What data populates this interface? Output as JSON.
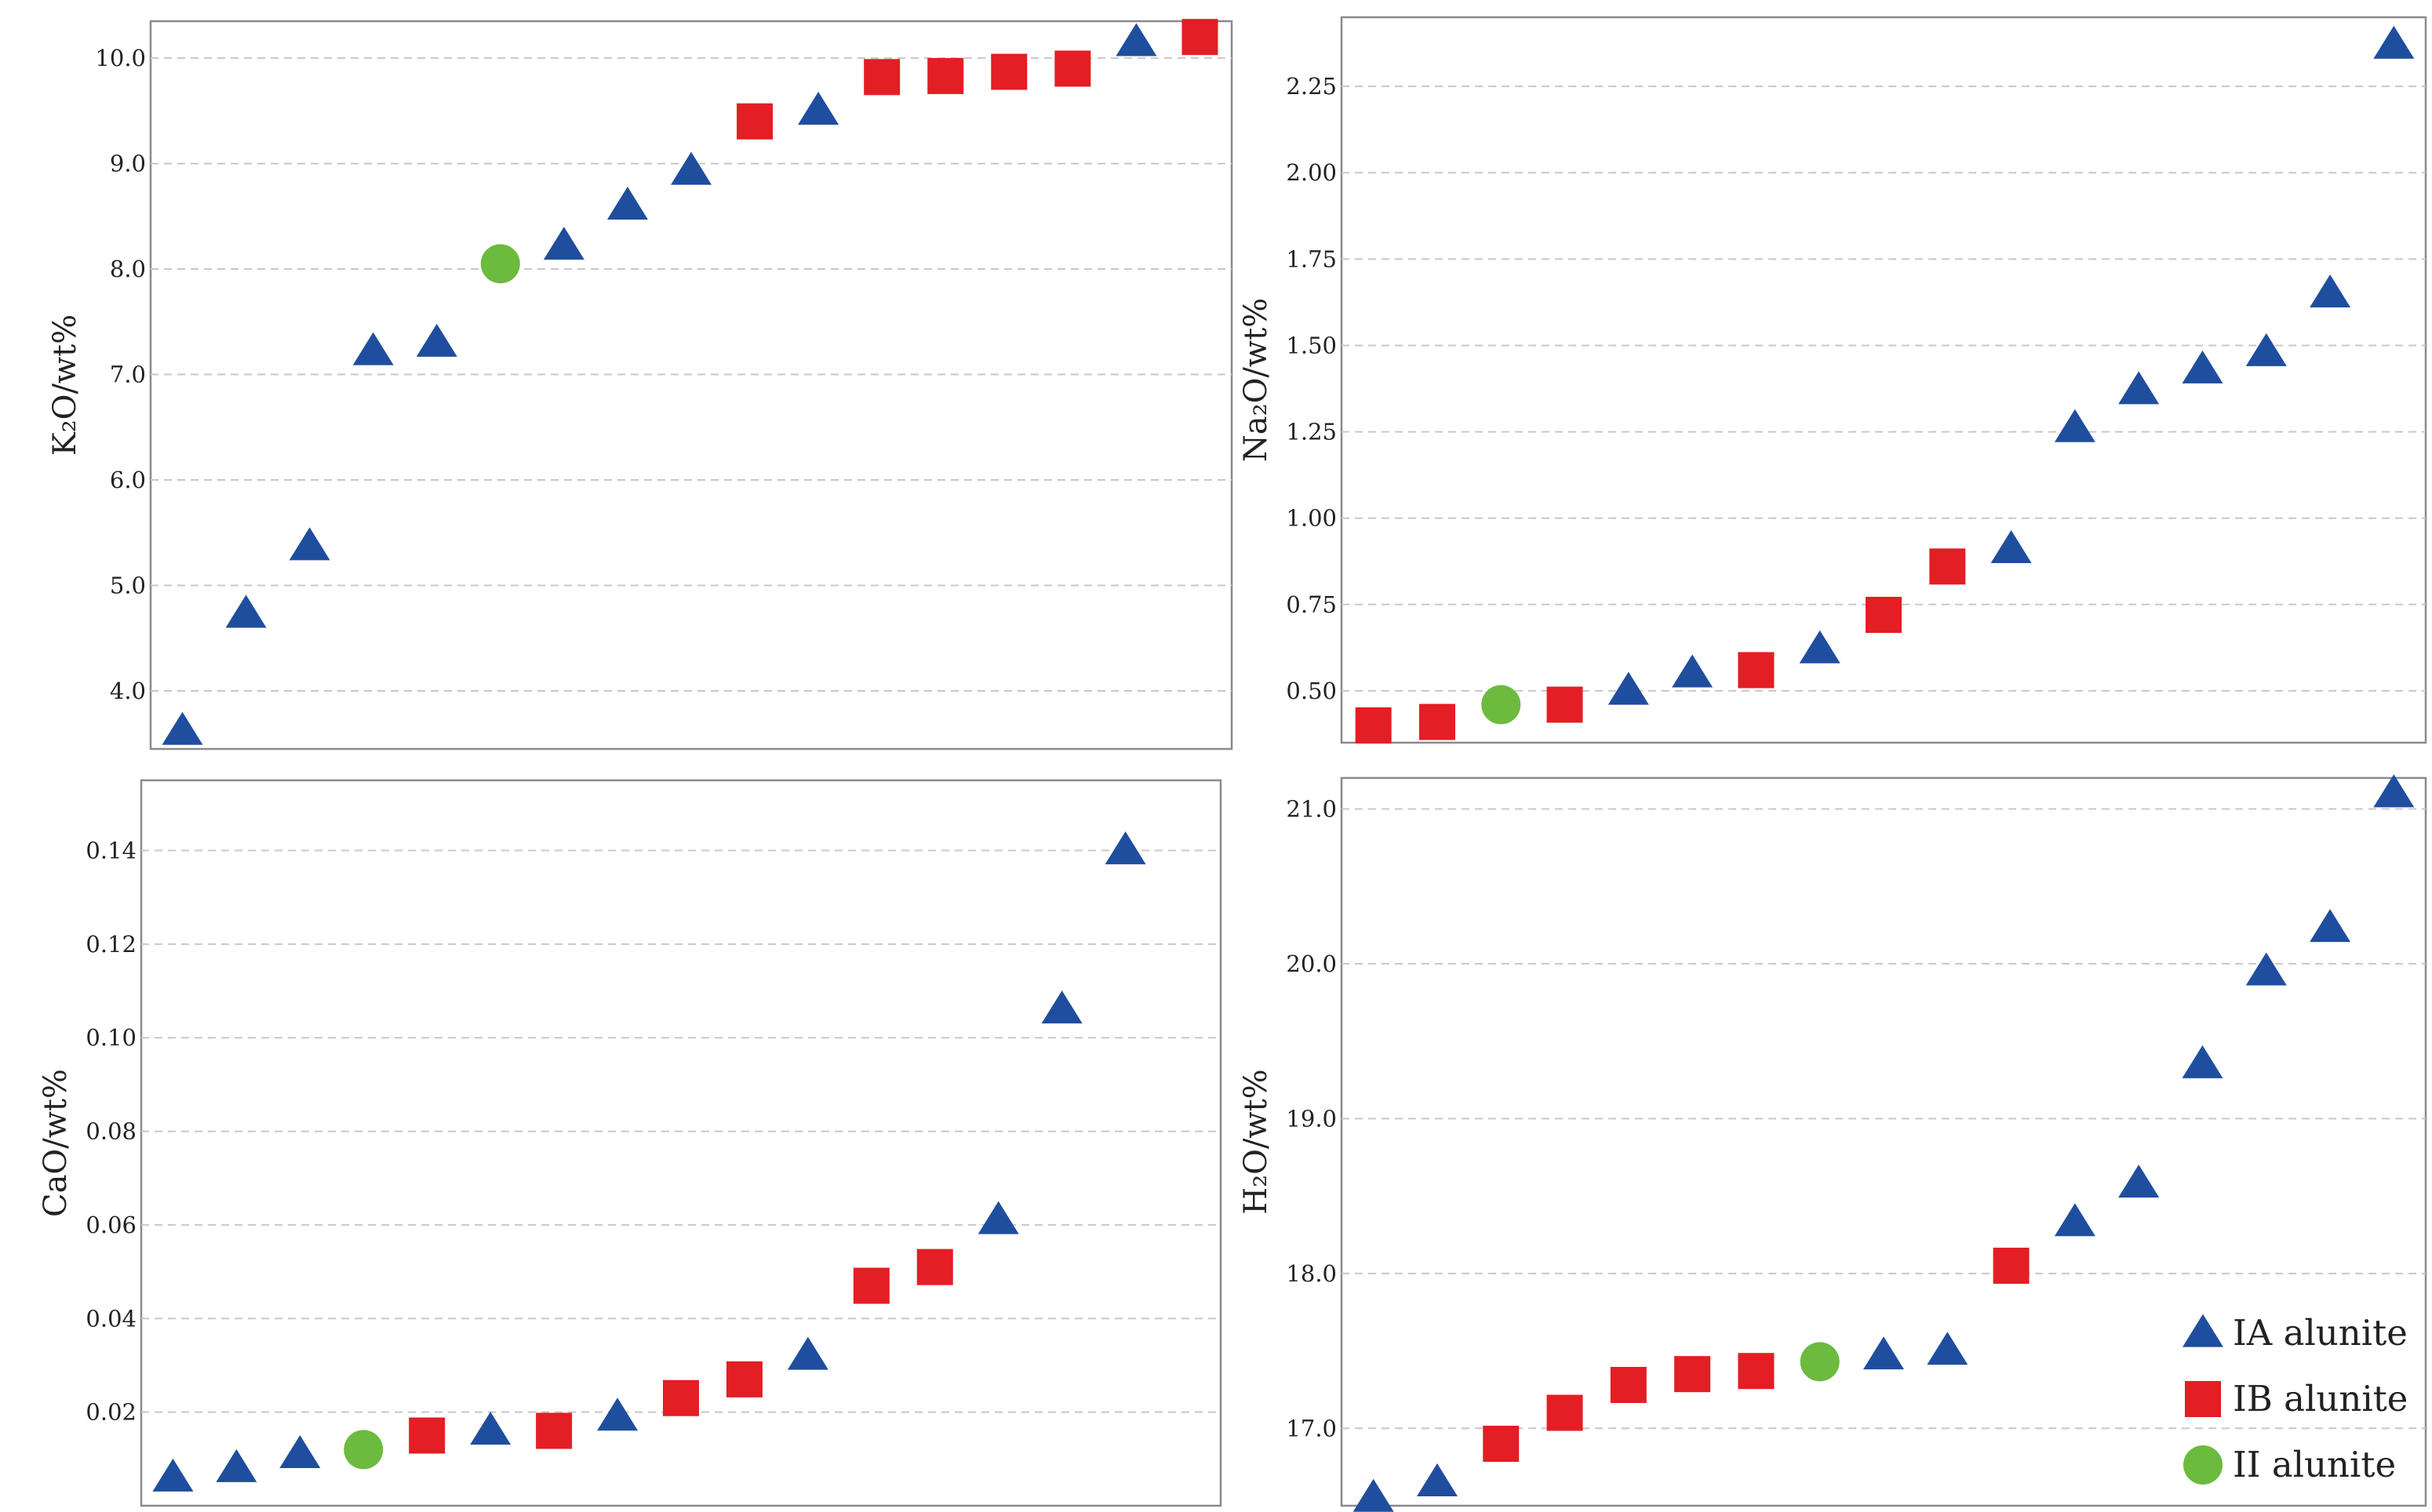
{
  "colors": {
    "IA": "#1f4e9e",
    "IB": "#e31e24",
    "II": "#6cba3e"
  },
  "legend": [
    {
      "key": "IA",
      "label": "IA alunite",
      "shape": "triangle"
    },
    {
      "key": "IB",
      "label": "IB alunite",
      "shape": "square"
    },
    {
      "key": "II",
      "label": "II alunite",
      "shape": "circle"
    }
  ],
  "chart_data": [
    {
      "type": "scatter",
      "id": "k2o",
      "ylabel": "K₂O/wt%",
      "ylim": [
        3.45,
        10.35
      ],
      "yticks": [
        4.0,
        5.0,
        6.0,
        7.0,
        8.0,
        9.0,
        10.0
      ],
      "ytick_labels": [
        "4.0",
        "5.0",
        "6.0",
        "7.0",
        "8.0",
        "9.0",
        "10.0"
      ],
      "xlim": [
        0.5,
        17.5
      ],
      "grid": true,
      "points": [
        {
          "x": 1,
          "y": 3.62,
          "group": "IA"
        },
        {
          "x": 2,
          "y": 4.73,
          "group": "IA"
        },
        {
          "x": 3,
          "y": 5.37,
          "group": "IA"
        },
        {
          "x": 4,
          "y": 7.22,
          "group": "IA"
        },
        {
          "x": 5,
          "y": 7.3,
          "group": "IA"
        },
        {
          "x": 6,
          "y": 8.05,
          "group": "II"
        },
        {
          "x": 7,
          "y": 8.22,
          "group": "IA"
        },
        {
          "x": 8,
          "y": 8.6,
          "group": "IA"
        },
        {
          "x": 9,
          "y": 8.93,
          "group": "IA"
        },
        {
          "x": 10,
          "y": 9.4,
          "group": "IB"
        },
        {
          "x": 11,
          "y": 9.5,
          "group": "IA"
        },
        {
          "x": 12,
          "y": 9.82,
          "group": "IB"
        },
        {
          "x": 13,
          "y": 9.83,
          "group": "IB"
        },
        {
          "x": 14,
          "y": 9.87,
          "group": "IB"
        },
        {
          "x": 15,
          "y": 9.9,
          "group": "IB"
        },
        {
          "x": 16,
          "y": 10.15,
          "group": "IA"
        },
        {
          "x": 17,
          "y": 10.2,
          "group": "IB"
        }
      ]
    },
    {
      "type": "scatter",
      "id": "na2o",
      "ylabel": "Na₂O/wt%",
      "ylim": [
        0.35,
        2.45
      ],
      "yticks": [
        0.5,
        0.75,
        1.0,
        1.25,
        1.5,
        1.75,
        2.0,
        2.25
      ],
      "ytick_labels": [
        "0.50",
        "0.75",
        "1.00",
        "1.25",
        "1.50",
        "1.75",
        "2.00",
        "2.25"
      ],
      "xlim": [
        0.5,
        17.5
      ],
      "grid": true,
      "points": [
        {
          "x": 1,
          "y": 0.4,
          "group": "IB"
        },
        {
          "x": 2,
          "y": 0.41,
          "group": "IB"
        },
        {
          "x": 3,
          "y": 0.46,
          "group": "II"
        },
        {
          "x": 4,
          "y": 0.46,
          "group": "IB"
        },
        {
          "x": 5,
          "y": 0.5,
          "group": "IA"
        },
        {
          "x": 6,
          "y": 0.55,
          "group": "IA"
        },
        {
          "x": 7,
          "y": 0.56,
          "group": "IB"
        },
        {
          "x": 8,
          "y": 0.62,
          "group": "IA"
        },
        {
          "x": 9,
          "y": 0.72,
          "group": "IB"
        },
        {
          "x": 10,
          "y": 0.86,
          "group": "IB"
        },
        {
          "x": 11,
          "y": 0.91,
          "group": "IA"
        },
        {
          "x": 12,
          "y": 1.26,
          "group": "IA"
        },
        {
          "x": 13,
          "y": 1.37,
          "group": "IA"
        },
        {
          "x": 14,
          "y": 1.43,
          "group": "IA"
        },
        {
          "x": 15,
          "y": 1.48,
          "group": "IA"
        },
        {
          "x": 16,
          "y": 1.65,
          "group": "IA"
        },
        {
          "x": 17,
          "y": 2.37,
          "group": "IA"
        }
      ]
    },
    {
      "type": "scatter",
      "id": "cao",
      "ylabel": "CaO/wt%",
      "ylim": [
        0.0,
        0.155
      ],
      "yticks": [
        0.02,
        0.04,
        0.06,
        0.08,
        0.1,
        0.12,
        0.14
      ],
      "ytick_labels": [
        "0.02",
        "0.04",
        "0.06",
        "0.08",
        "0.10",
        "0.12",
        "0.14"
      ],
      "xlim": [
        0.5,
        17.5
      ],
      "grid": true,
      "points": [
        {
          "x": 1,
          "y": 0.006,
          "group": "IA"
        },
        {
          "x": 2,
          "y": 0.008,
          "group": "IA"
        },
        {
          "x": 3,
          "y": 0.011,
          "group": "IA"
        },
        {
          "x": 4,
          "y": 0.012,
          "group": "II"
        },
        {
          "x": 5,
          "y": 0.015,
          "group": "IB"
        },
        {
          "x": 6,
          "y": 0.016,
          "group": "IA"
        },
        {
          "x": 7,
          "y": 0.016,
          "group": "IB"
        },
        {
          "x": 8,
          "y": 0.019,
          "group": "IA"
        },
        {
          "x": 9,
          "y": 0.023,
          "group": "IB"
        },
        {
          "x": 10,
          "y": 0.027,
          "group": "IB"
        },
        {
          "x": 11,
          "y": 0.032,
          "group": "IA"
        },
        {
          "x": 12,
          "y": 0.047,
          "group": "IB"
        },
        {
          "x": 13,
          "y": 0.051,
          "group": "IB"
        },
        {
          "x": 14,
          "y": 0.061,
          "group": "IA"
        },
        {
          "x": 15,
          "y": 0.106,
          "group": "IA"
        },
        {
          "x": 16,
          "y": 0.14,
          "group": "IA"
        }
      ]
    },
    {
      "type": "scatter",
      "id": "h2o",
      "ylabel": "H₂O/wt%",
      "ylim": [
        16.5,
        21.2
      ],
      "yticks": [
        17.0,
        18.0,
        19.0,
        20.0,
        21.0
      ],
      "ytick_labels": [
        "17.0",
        "18.0",
        "19.0",
        "20.0",
        "21.0"
      ],
      "xlim": [
        0.5,
        17.5
      ],
      "grid": true,
      "legend_position": "bottom-right",
      "points": [
        {
          "x": 1,
          "y": 16.55,
          "group": "IA"
        },
        {
          "x": 2,
          "y": 16.65,
          "group": "IA"
        },
        {
          "x": 3,
          "y": 16.9,
          "group": "IB"
        },
        {
          "x": 4,
          "y": 17.1,
          "group": "IB"
        },
        {
          "x": 5,
          "y": 17.28,
          "group": "IB"
        },
        {
          "x": 6,
          "y": 17.35,
          "group": "IB"
        },
        {
          "x": 7,
          "y": 17.37,
          "group": "IB"
        },
        {
          "x": 8,
          "y": 17.43,
          "group": "II"
        },
        {
          "x": 9,
          "y": 17.47,
          "group": "IA"
        },
        {
          "x": 10,
          "y": 17.5,
          "group": "IA"
        },
        {
          "x": 11,
          "y": 18.05,
          "group": "IB"
        },
        {
          "x": 12,
          "y": 18.33,
          "group": "IA"
        },
        {
          "x": 13,
          "y": 18.58,
          "group": "IA"
        },
        {
          "x": 14,
          "y": 19.35,
          "group": "IA"
        },
        {
          "x": 15,
          "y": 19.95,
          "group": "IA"
        },
        {
          "x": 16,
          "y": 20.23,
          "group": "IA"
        },
        {
          "x": 17,
          "y": 21.1,
          "group": "IA"
        }
      ]
    }
  ]
}
